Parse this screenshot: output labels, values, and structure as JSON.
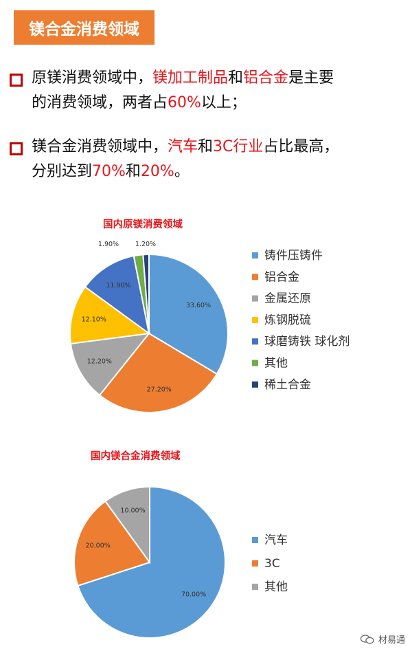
{
  "header": {
    "title": "镁合金消费领域"
  },
  "bullets": [
    {
      "l1_a": "原镁消费领域中，",
      "l1_b": "镁加工制品",
      "l1_c": "和",
      "l1_d": "铝合金",
      "l1_e": "是主要",
      "l2_a": "的消费领域，两者占",
      "l2_b": "60%",
      "l2_c": "以上；"
    },
    {
      "l1_a": "镁合金消费领域中，",
      "l1_b": "汽车",
      "l1_c": "和",
      "l1_d": "3C行业",
      "l1_e": "占比最高，",
      "l2_a": "分别达到",
      "l2_b": "70%",
      "l2_c": "和",
      "l2_d": "20%",
      "l2_e": "。"
    }
  ],
  "chart_data": [
    {
      "type": "pie",
      "title": "国内原镁消费领域",
      "categories": [
        "铸件压铸件",
        "铝合金",
        "金属还原",
        "炼钢脱硫",
        "球磨铸铁 球化剂",
        "其他",
        "稀土合金"
      ],
      "values": [
        33.6,
        27.2,
        12.2,
        12.1,
        11.9,
        1.9,
        1.2
      ],
      "labels": [
        "33.60%",
        "27.20%",
        "12.20%",
        "12.10%",
        "11.90%",
        "1.90%",
        "1.20%"
      ],
      "colors": [
        "#5B9BD5",
        "#ED7D31",
        "#A5A5A5",
        "#FFC000",
        "#4472C4",
        "#70AD47",
        "#264478"
      ],
      "legend": "right"
    },
    {
      "type": "pie",
      "title": "国内镁合金消费领域",
      "categories": [
        "汽车",
        "3C",
        "其他"
      ],
      "values": [
        70,
        20,
        10
      ],
      "labels": [
        "70.00%",
        "20.00%",
        "10.00%"
      ],
      "colors": [
        "#5B9BD5",
        "#ED7D31",
        "#A5A5A5"
      ],
      "legend": "right"
    }
  ],
  "watermark": {
    "text": "材易通"
  }
}
